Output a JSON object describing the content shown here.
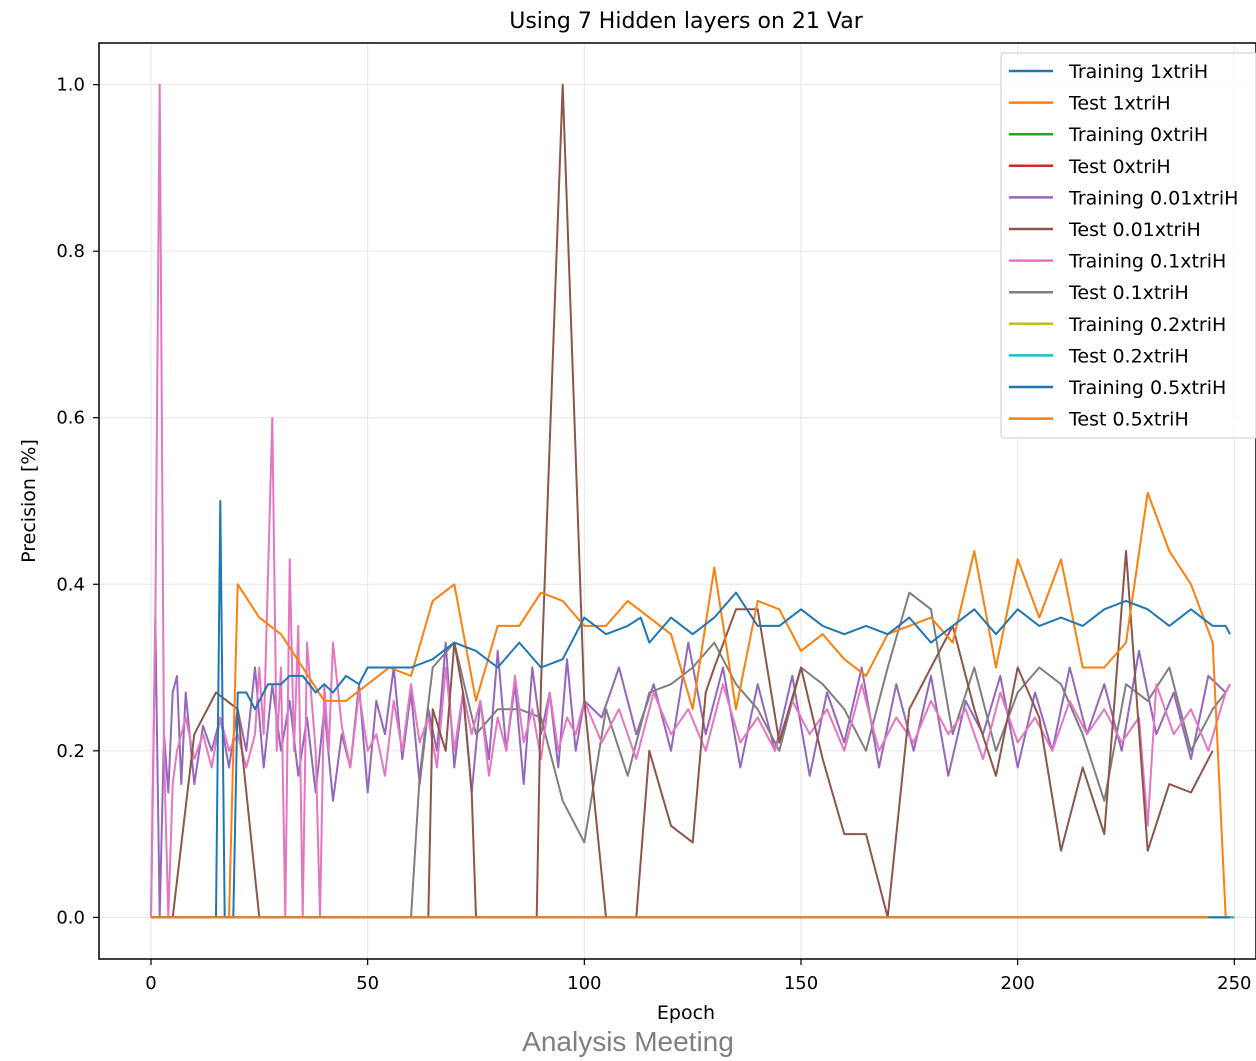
{
  "footer": "Analysis Meeting",
  "chart_data": {
    "type": "line",
    "title": "Using 7 Hidden layers on 21 Var",
    "xlabel": "Epoch",
    "ylabel": "Precision [%]",
    "xlim": [
      -12,
      255
    ],
    "ylim": [
      -0.05,
      1.05
    ],
    "xticks": [
      0,
      50,
      100,
      150,
      200,
      250
    ],
    "yticks": [
      0.0,
      0.2,
      0.4,
      0.6,
      0.8,
      1.0
    ],
    "ytick_labels": [
      "0.0",
      "0.2",
      "0.4",
      "0.6",
      "0.8",
      "1.0"
    ],
    "grid": true,
    "legend_position": "top-right",
    "series": [
      {
        "name": "Training 1xtriH",
        "color": "#1f77b4",
        "x": [
          0,
          5,
          10,
          14,
          15,
          16,
          17,
          18,
          19,
          20,
          22,
          24,
          25,
          27,
          30,
          32,
          35,
          38,
          40,
          42,
          45,
          48,
          50,
          55,
          60,
          65,
          70,
          75,
          80,
          85,
          90,
          95,
          98,
          100,
          105,
          110,
          113,
          115,
          120,
          125,
          130,
          135,
          140,
          145,
          150,
          155,
          160,
          165,
          170,
          175,
          180,
          185,
          190,
          195,
          200,
          205,
          210,
          215,
          220,
          225,
          230,
          235,
          240,
          245,
          248,
          249
        ],
        "y": [
          0,
          0,
          0,
          0,
          0,
          0.5,
          0,
          0,
          0,
          0.27,
          0.27,
          0.25,
          0.26,
          0.28,
          0.28,
          0.29,
          0.29,
          0.27,
          0.28,
          0.27,
          0.29,
          0.28,
          0.3,
          0.3,
          0.3,
          0.31,
          0.33,
          0.32,
          0.3,
          0.33,
          0.3,
          0.31,
          0.34,
          0.36,
          0.34,
          0.35,
          0.36,
          0.33,
          0.36,
          0.34,
          0.36,
          0.39,
          0.35,
          0.35,
          0.37,
          0.35,
          0.34,
          0.35,
          0.34,
          0.36,
          0.33,
          0.35,
          0.37,
          0.34,
          0.37,
          0.35,
          0.36,
          0.35,
          0.37,
          0.38,
          0.37,
          0.35,
          0.37,
          0.35,
          0.35,
          0.34
        ]
      },
      {
        "name": "Test 1xtriH",
        "color": "#ff7f0e",
        "x": [
          0,
          5,
          10,
          15,
          18,
          20,
          25,
          30,
          35,
          40,
          45,
          50,
          55,
          60,
          65,
          70,
          75,
          80,
          85,
          90,
          95,
          100,
          105,
          110,
          115,
          120,
          125,
          130,
          135,
          140,
          145,
          150,
          155,
          160,
          165,
          170,
          175,
          180,
          185,
          190,
          195,
          200,
          205,
          210,
          215,
          220,
          225,
          230,
          235,
          240,
          245,
          248
        ],
        "y": [
          0,
          0,
          0,
          0,
          0,
          0.4,
          0.36,
          0.34,
          0.3,
          0.26,
          0.26,
          0.28,
          0.3,
          0.29,
          0.38,
          0.4,
          0.26,
          0.35,
          0.35,
          0.39,
          0.38,
          0.35,
          0.35,
          0.38,
          0.36,
          0.34,
          0.25,
          0.42,
          0.25,
          0.38,
          0.37,
          0.32,
          0.34,
          0.31,
          0.29,
          0.34,
          0.35,
          0.36,
          0.33,
          0.44,
          0.3,
          0.43,
          0.36,
          0.43,
          0.3,
          0.3,
          0.33,
          0.51,
          0.44,
          0.4,
          0.33,
          0
        ]
      },
      {
        "name": "Training 0xtriH",
        "color": "#2ca02c",
        "x": [
          0,
          250
        ],
        "y": [
          0,
          0
        ]
      },
      {
        "name": "Test 0xtriH",
        "color": "#d62728",
        "x": [
          0,
          250
        ],
        "y": [
          0,
          0
        ]
      },
      {
        "name": "Training 0.01xtriH",
        "color": "#9467bd",
        "x": [
          0,
          1,
          2,
          3,
          4,
          5,
          6,
          7,
          8,
          10,
          12,
          14,
          16,
          18,
          20,
          22,
          24,
          26,
          28,
          30,
          32,
          34,
          36,
          38,
          40,
          42,
          44,
          46,
          48,
          50,
          52,
          54,
          56,
          58,
          60,
          62,
          64,
          66,
          68,
          70,
          72,
          74,
          76,
          78,
          80,
          82,
          84,
          86,
          88,
          90,
          92,
          94,
          96,
          98,
          100,
          104,
          108,
          112,
          116,
          120,
          124,
          128,
          132,
          136,
          140,
          144,
          148,
          152,
          156,
          160,
          164,
          168,
          172,
          176,
          180,
          184,
          188,
          192,
          196,
          200,
          204,
          208,
          212,
          216,
          220,
          224,
          228,
          232,
          236,
          240,
          244,
          248,
          249
        ],
        "y": [
          0,
          0.36,
          0,
          0.22,
          0.15,
          0.27,
          0.29,
          0.16,
          0.27,
          0.16,
          0.23,
          0.2,
          0.24,
          0.18,
          0.25,
          0.2,
          0.3,
          0.18,
          0.28,
          0.2,
          0.26,
          0.17,
          0.24,
          0.15,
          0.25,
          0.14,
          0.22,
          0.18,
          0.28,
          0.15,
          0.26,
          0.22,
          0.3,
          0.19,
          0.27,
          0.16,
          0.25,
          0.2,
          0.33,
          0.18,
          0.27,
          0.15,
          0.26,
          0.19,
          0.32,
          0.2,
          0.28,
          0.16,
          0.3,
          0.22,
          0.27,
          0.18,
          0.31,
          0.2,
          0.26,
          0.24,
          0.3,
          0.22,
          0.28,
          0.2,
          0.33,
          0.22,
          0.3,
          0.18,
          0.28,
          0.2,
          0.29,
          0.17,
          0.27,
          0.21,
          0.3,
          0.18,
          0.28,
          0.2,
          0.29,
          0.17,
          0.26,
          0.22,
          0.29,
          0.18,
          0.27,
          0.2,
          0.3,
          0.22,
          0.28,
          0.2,
          0.32,
          0.22,
          0.27,
          0.19,
          0.29,
          0.27,
          0.28
        ]
      },
      {
        "name": "Test 0.01xtriH",
        "color": "#8c564b",
        "x": [
          0,
          5,
          10,
          15,
          20,
          25,
          30,
          35,
          60,
          64,
          65,
          68,
          70,
          72,
          74,
          75,
          88,
          89,
          90,
          95,
          100,
          105,
          110,
          112,
          115,
          120,
          125,
          128,
          130,
          135,
          140,
          145,
          150,
          155,
          160,
          165,
          170,
          175,
          180,
          185,
          190,
          195,
          200,
          205,
          210,
          215,
          220,
          225,
          230,
          235,
          240,
          245
        ],
        "y": [
          0,
          0,
          0.22,
          0.27,
          0.25,
          0,
          0,
          0,
          0,
          0,
          0.25,
          0.2,
          0.33,
          0.27,
          0.15,
          0,
          0,
          0,
          0.28,
          1.0,
          0.26,
          0,
          0,
          0,
          0.2,
          0.11,
          0.09,
          0.27,
          0.3,
          0.37,
          0.37,
          0.21,
          0.3,
          0.19,
          0.1,
          0.1,
          0,
          0.25,
          0.3,
          0.35,
          0.25,
          0.17,
          0.3,
          0.24,
          0.08,
          0.18,
          0.1,
          0.44,
          0.08,
          0.16,
          0.15,
          0.2
        ]
      },
      {
        "name": "Training 0.1xtriH",
        "color": "#e377c2",
        "x": [
          0,
          1,
          2,
          3,
          4,
          5,
          6,
          8,
          10,
          12,
          14,
          16,
          18,
          20,
          22,
          24,
          25,
          26,
          28,
          29,
          30,
          31,
          32,
          33,
          34,
          35,
          36,
          38,
          39,
          40,
          41,
          42,
          44,
          46,
          48,
          50,
          52,
          54,
          56,
          58,
          60,
          62,
          64,
          66,
          68,
          70,
          72,
          74,
          76,
          78,
          80,
          82,
          84,
          86,
          88,
          90,
          92,
          94,
          96,
          98,
          100,
          104,
          108,
          112,
          116,
          120,
          124,
          128,
          132,
          136,
          140,
          144,
          148,
          152,
          156,
          160,
          164,
          168,
          172,
          176,
          180,
          184,
          188,
          192,
          196,
          200,
          204,
          208,
          212,
          216,
          220,
          224,
          228,
          230,
          232,
          236,
          240,
          244,
          248,
          249
        ],
        "y": [
          0,
          0.35,
          1.0,
          0.2,
          0,
          0.16,
          0.2,
          0.24,
          0.19,
          0.22,
          0.18,
          0.24,
          0.2,
          0.22,
          0.18,
          0.22,
          0.3,
          0.22,
          0.6,
          0.2,
          0.3,
          0,
          0.43,
          0.2,
          0.35,
          0,
          0.33,
          0.2,
          0,
          0.28,
          0.2,
          0.33,
          0.23,
          0.18,
          0.27,
          0.2,
          0.22,
          0.17,
          0.26,
          0.2,
          0.28,
          0.21,
          0.24,
          0.18,
          0.3,
          0.2,
          0.27,
          0.22,
          0.26,
          0.17,
          0.24,
          0.2,
          0.29,
          0.21,
          0.25,
          0.19,
          0.27,
          0.2,
          0.24,
          0.22,
          0.26,
          0.21,
          0.25,
          0.19,
          0.27,
          0.22,
          0.25,
          0.2,
          0.28,
          0.21,
          0.24,
          0.2,
          0.26,
          0.22,
          0.25,
          0.2,
          0.28,
          0.2,
          0.24,
          0.21,
          0.26,
          0.22,
          0.25,
          0.19,
          0.27,
          0.21,
          0.24,
          0.2,
          0.26,
          0.22,
          0.25,
          0.21,
          0.24,
          0.11,
          0.28,
          0.22,
          0.25,
          0.2,
          0.27,
          0.28
        ]
      },
      {
        "name": "Test 0.1xtriH",
        "color": "#7f7f7f",
        "x": [
          0,
          60,
          62,
          65,
          70,
          75,
          80,
          85,
          90,
          95,
          100,
          105,
          110,
          115,
          120,
          125,
          130,
          135,
          140,
          145,
          150,
          155,
          160,
          165,
          170,
          175,
          180,
          185,
          190,
          195,
          200,
          205,
          210,
          215,
          220,
          225,
          230,
          235,
          240,
          245,
          248
        ],
        "y": [
          0,
          0,
          0.17,
          0.3,
          0.33,
          0.22,
          0.25,
          0.25,
          0.24,
          0.14,
          0.09,
          0.25,
          0.17,
          0.27,
          0.28,
          0.3,
          0.33,
          0.28,
          0.25,
          0.2,
          0.3,
          0.28,
          0.25,
          0.2,
          0.3,
          0.39,
          0.37,
          0.22,
          0.3,
          0.2,
          0.27,
          0.3,
          0.28,
          0.22,
          0.14,
          0.28,
          0.26,
          0.3,
          0.2,
          0.25,
          0.27
        ]
      },
      {
        "name": "Training 0.2xtriH",
        "color": "#bcbd22",
        "x": [
          0,
          250
        ],
        "y": [
          0,
          0
        ]
      },
      {
        "name": "Test 0.2xtriH",
        "color": "#17becf",
        "x": [
          0,
          250
        ],
        "y": [
          0,
          0
        ]
      },
      {
        "name": "Training 0.5xtriH",
        "color": "#1f77b4",
        "x": [
          0,
          244,
          245,
          249
        ],
        "y": [
          0,
          0,
          0,
          0
        ]
      },
      {
        "name": "Test 0.5xtriH",
        "color": "#ff7f0e",
        "x": [
          0,
          244
        ],
        "y": [
          0,
          0
        ]
      }
    ],
    "draw_order": [
      4,
      7,
      6,
      5,
      1,
      0,
      2,
      3,
      8,
      9,
      10,
      11
    ]
  }
}
